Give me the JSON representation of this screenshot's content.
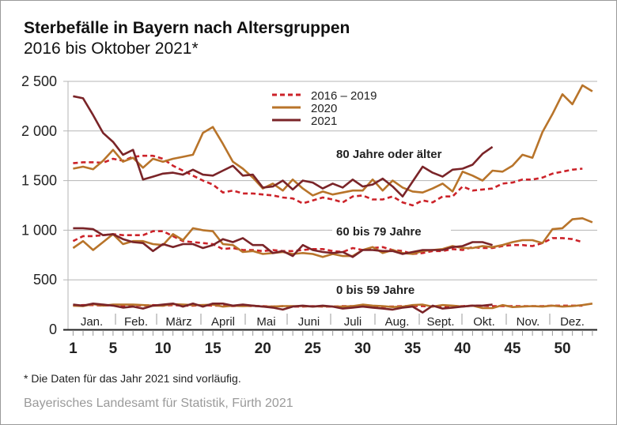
{
  "title": "Sterbefälle in Bayern nach Altersgruppen",
  "subtitle": "2016 bis Oktober 2021*",
  "footnote": "* Die Daten für das Jahr 2021 sind vorläufig.",
  "source": "Bayerisches Landesamt für Statistik, Fürth 2021",
  "colors": {
    "avg": "#cc2229",
    "y2020": "#b8742a",
    "y2021": "#7a2428"
  },
  "chart_data": {
    "type": "line",
    "xlabel": "",
    "ylabel": "",
    "xlim": [
      1,
      53
    ],
    "ylim": [
      0,
      2500
    ],
    "yticks": [
      0,
      500,
      1000,
      1500,
      2000,
      2500
    ],
    "ytick_labels": [
      "0",
      "500",
      "1 000",
      "1 500",
      "2 000",
      "2 500"
    ],
    "xticks": [
      1,
      5,
      10,
      15,
      20,
      25,
      30,
      35,
      40,
      45,
      50
    ],
    "xtick_labels": [
      "1",
      "5",
      "10",
      "15",
      "20",
      "25",
      "30",
      "35",
      "40",
      "45",
      "50"
    ],
    "months": [
      "Jan.",
      "Feb.",
      "März",
      "April",
      "Mai",
      "Juni",
      "Juli",
      "Aug.",
      "Sept.",
      "Okt.",
      "Nov.",
      "Dez."
    ],
    "legend": [
      "2016 – 2019",
      "2020",
      "2021"
    ],
    "legend_position": "top-center",
    "grid": true,
    "groups": [
      {
        "label": "80 Jahre oder älter",
        "series": [
          {
            "name": "2016 – 2019",
            "values": [
              1675,
              1685,
              1685,
              1680,
              1720,
              1700,
              1740,
              1750,
              1750,
              1720,
              1650,
              1600,
              1550,
              1500,
              1460,
              1380,
              1400,
              1370,
              1370,
              1360,
              1350,
              1330,
              1320,
              1270,
              1300,
              1330,
              1310,
              1280,
              1340,
              1350,
              1310,
              1310,
              1340,
              1280,
              1250,
              1300,
              1280,
              1340,
              1340,
              1440,
              1400,
              1410,
              1420,
              1470,
              1480,
              1510,
              1510,
              1530,
              1570,
              1590,
              1610,
              1620
            ]
          },
          {
            "name": "2020",
            "values": [
              1620,
              1640,
              1615,
              1700,
              1810,
              1690,
              1730,
              1630,
              1720,
              1690,
              1720,
              1740,
              1760,
              1980,
              2040,
              1870,
              1690,
              1620,
              1530,
              1420,
              1470,
              1400,
              1510,
              1420,
              1350,
              1390,
              1360,
              1380,
              1400,
              1400,
              1510,
              1400,
              1500,
              1430,
              1390,
              1380,
              1420,
              1470,
              1390,
              1590,
              1550,
              1500,
              1600,
              1590,
              1650,
              1760,
              1730,
              1990,
              2170,
              2370,
              2270,
              2460,
              2400
            ]
          },
          {
            "name": "2021",
            "values": [
              2350,
              2330,
              2160,
              1980,
              1890,
              1760,
              1810,
              1510,
              1540,
              1570,
              1580,
              1560,
              1610,
              1560,
              1550,
              1600,
              1650,
              1550,
              1560,
              1430,
              1440,
              1500,
              1410,
              1500,
              1480,
              1420,
              1470,
              1430,
              1510,
              1440,
              1460,
              1520,
              1440,
              1340,
              1490,
              1640,
              1580,
              1540,
              1610,
              1620,
              1660,
              1770,
              1840
            ]
          }
        ]
      },
      {
        "label": "60 bis 79 Jahre",
        "series": [
          {
            "name": "2016 – 2019",
            "values": [
              890,
              940,
              940,
              950,
              960,
              950,
              950,
              950,
              990,
              990,
              940,
              890,
              880,
              870,
              860,
              810,
              820,
              800,
              800,
              790,
              800,
              790,
              790,
              800,
              810,
              810,
              790,
              780,
              820,
              800,
              820,
              830,
              800,
              790,
              760,
              770,
              790,
              790,
              810,
              800,
              830,
              820,
              820,
              840,
              850,
              850,
              840,
              870,
              920,
              920,
              910,
              880
            ]
          },
          {
            "name": "2020",
            "values": [
              820,
              890,
              800,
              880,
              960,
              860,
              890,
              890,
              860,
              850,
              960,
              900,
              1020,
              1000,
              990,
              860,
              850,
              780,
              790,
              760,
              770,
              780,
              760,
              770,
              760,
              730,
              760,
              740,
              740,
              800,
              830,
              770,
              800,
              770,
              760,
              790,
              800,
              810,
              840,
              820,
              820,
              840,
              830,
              850,
              880,
              900,
              900,
              870,
              1010,
              1020,
              1110,
              1120,
              1080
            ]
          },
          {
            "name": "2021",
            "values": [
              1020,
              1020,
              1010,
              950,
              960,
              910,
              880,
              870,
              790,
              860,
              830,
              860,
              860,
              820,
              850,
              910,
              880,
              920,
              850,
              850,
              770,
              790,
              740,
              850,
              800,
              780,
              770,
              780,
              730,
              800,
              800,
              790,
              790,
              760,
              780,
              800,
              800,
              800,
              830,
              840,
              880,
              880,
              850
            ]
          }
        ]
      },
      {
        "label": "0 bis 59 Jahre",
        "series": [
          {
            "name": "2016 – 2019",
            "values": [
              240,
              245,
              245,
              240,
              245,
              240,
              245,
              240,
              245,
              240,
              245,
              240,
              240,
              245,
              240,
              240,
              235,
              240,
              235,
              235,
              230,
              235,
              230,
              230,
              235,
              230,
              230,
              235,
              235,
              230,
              230,
              230,
              230,
              235,
              235,
              235,
              230,
              230,
              235,
              235,
              240,
              240,
              235,
              235,
              235,
              235,
              235,
              235,
              240,
              240,
              240,
              240
            ]
          },
          {
            "name": "2020",
            "values": [
              240,
              235,
              255,
              240,
              250,
              250,
              250,
              245,
              240,
              240,
              255,
              250,
              245,
              245,
              250,
              230,
              240,
              235,
              240,
              230,
              230,
              235,
              235,
              235,
              230,
              235,
              230,
              230,
              235,
              250,
              240,
              235,
              225,
              230,
              245,
              250,
              230,
              245,
              240,
              230,
              240,
              215,
              215,
              245,
              225,
              230,
              235,
              230,
              240,
              230,
              235,
              245,
              260
            ]
          },
          {
            "name": "2021",
            "values": [
              250,
              240,
              260,
              250,
              240,
              220,
              230,
              210,
              240,
              250,
              260,
              230,
              260,
              230,
              260,
              260,
              240,
              250,
              240,
              230,
              220,
              200,
              230,
              240,
              230,
              240,
              230,
              210,
              220,
              230,
              220,
              210,
              200,
              220,
              230,
              170,
              240,
              210,
              220,
              230,
              240,
              240,
              250
            ]
          }
        ]
      }
    ]
  }
}
